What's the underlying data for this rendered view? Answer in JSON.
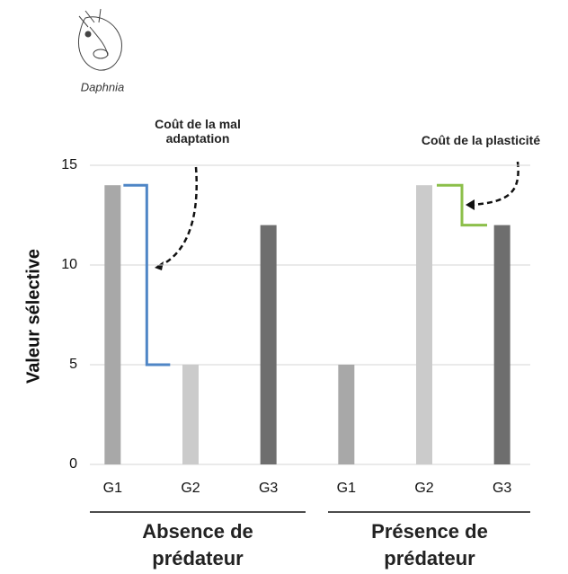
{
  "chart_data": {
    "type": "bar",
    "categories": [
      "G1",
      "G2",
      "G3",
      "G1",
      "G2",
      "G3"
    ],
    "values": [
      14,
      5,
      12,
      5,
      14,
      12
    ],
    "colors": [
      "#a8a8a8",
      "#cbcbcb",
      "#6e6e6e",
      "#a8a8a8",
      "#cbcbcb",
      "#6e6e6e"
    ],
    "groups": [
      "Absence de prédateur",
      "Présence de prédateur"
    ],
    "y_label": "Valeur sélective",
    "ylim": [
      0,
      15
    ],
    "yticks": [
      0,
      5,
      10,
      15
    ],
    "grid": true,
    "image_caption": "Daphnia",
    "annotations": [
      {
        "text": "Coût de la mal adaptation",
        "color": "#4f86c6"
      },
      {
        "text": "Coût de la plasticité",
        "color": "#8cbf4a"
      }
    ]
  }
}
